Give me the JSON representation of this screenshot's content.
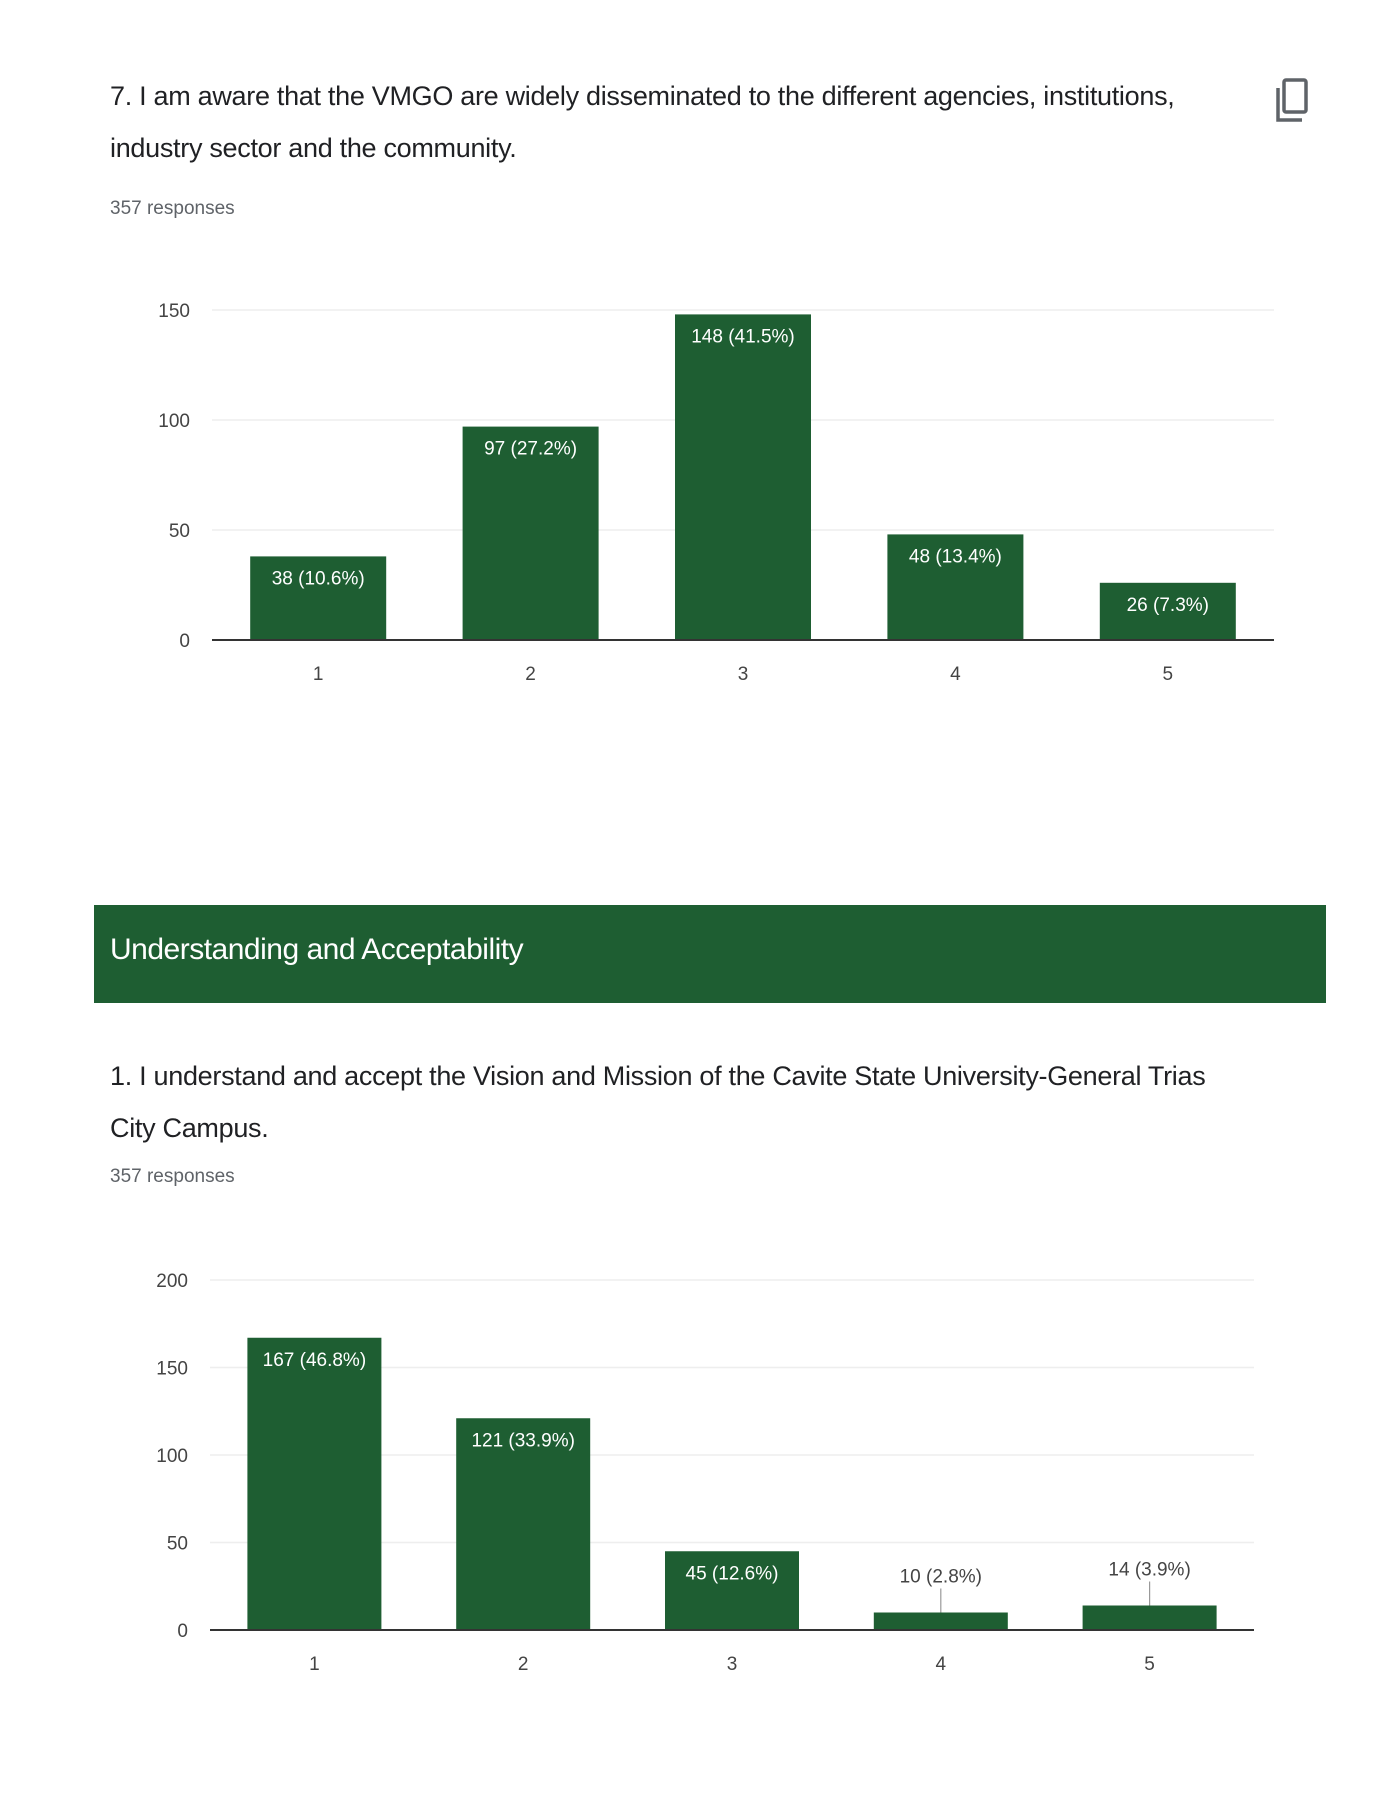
{
  "colors": {
    "bar": "#1e5e32",
    "grid": "#eeeeee",
    "axis": "#333333",
    "label_inside": "#ffffff",
    "label_outside": "#444444"
  },
  "questions": [
    {
      "text": "7. I am aware that the VMGO are widely disseminated to the different agencies, institutions, industry sector and the community.",
      "responses": "357 responses",
      "copy_icon": "copy-icon"
    },
    {
      "text": "1. I understand and accept the Vision and Mission of the Cavite State University-General Trias City Campus.",
      "responses": "357 responses"
    }
  ],
  "section": {
    "title": "Understanding and Acceptability"
  },
  "chart_data": [
    {
      "type": "bar",
      "categories": [
        "1",
        "2",
        "3",
        "4",
        "5"
      ],
      "values": [
        38,
        97,
        148,
        48,
        26
      ],
      "labels": [
        "38 (10.6%)",
        "97 (27.2%)",
        "148 (41.5%)",
        "48 (13.4%)",
        "26 (7.3%)"
      ],
      "yticks": [
        0,
        50,
        100,
        150
      ],
      "ylim": [
        0,
        150
      ],
      "grid": true
    },
    {
      "type": "bar",
      "categories": [
        "1",
        "2",
        "3",
        "4",
        "5"
      ],
      "values": [
        167,
        121,
        45,
        10,
        14
      ],
      "labels": [
        "167 (46.8%)",
        "121 (33.9%)",
        "45 (12.6%)",
        "10 (2.8%)",
        "14 (3.9%)"
      ],
      "yticks": [
        0,
        50,
        100,
        150,
        200
      ],
      "ylim": [
        0,
        200
      ],
      "grid": true
    }
  ]
}
